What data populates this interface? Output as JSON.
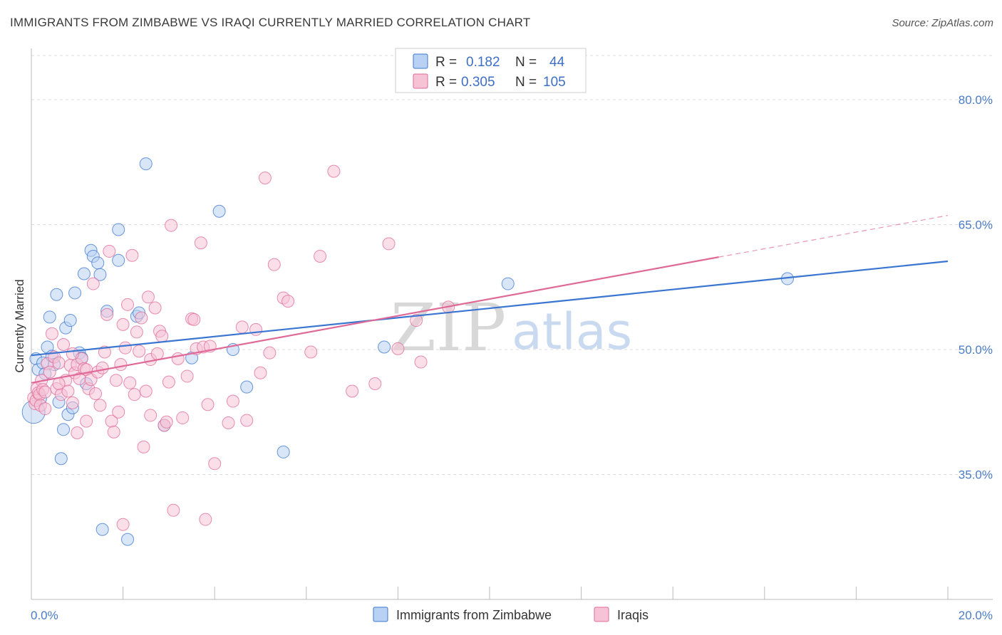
{
  "title": "IMMIGRANTS FROM ZIMBABWE VS IRAQI CURRENTLY MARRIED CORRELATION CHART",
  "source": "Source: ZipAtlas.com",
  "watermark": {
    "zip": "ZIP",
    "atlas": "atlas"
  },
  "colors": {
    "blue": "#3a76d1",
    "blue_fill": "#b9d1f3",
    "pink": "#e06a97",
    "pink_fill": "#f6c3d5",
    "grid": "#dddddd",
    "tick_label": "#4a7cc7"
  },
  "legend": {
    "rows": [
      {
        "r_label": "R =",
        "r_value": "0.182",
        "n_label": "N =",
        "n_value": "44"
      },
      {
        "r_label": "R =",
        "r_value": "0.305",
        "n_label": "N =",
        "n_value": "105"
      }
    ]
  },
  "chart_data": {
    "type": "scatter",
    "title": "IMMIGRANTS FROM ZIMBABWE VS IRAQI CURRENTLY MARRIED CORRELATION CHART",
    "xlabel": "",
    "ylabel": "Currently Married",
    "xlim": [
      0,
      20
    ],
    "ylim": [
      20,
      82
    ],
    "x_tick_labels": [
      "0.0%",
      "20.0%"
    ],
    "y_ticks": [
      35,
      50,
      65,
      80
    ],
    "y_tick_labels": [
      "35.0%",
      "50.0%",
      "65.0%",
      "80.0%"
    ],
    "grid": true,
    "legend_position": "top-center",
    "series": [
      {
        "name": "Immigrants from Zimbabwe",
        "color": "#3a76d1",
        "r": 0.182,
        "n": 44,
        "trend": {
          "x": [
            0,
            20
          ],
          "y": [
            49.3,
            60.6
          ]
        },
        "points": [
          [
            0.05,
            42.5
          ],
          [
            0.1,
            48.9
          ],
          [
            0.15,
            47.6
          ],
          [
            0.2,
            44.1
          ],
          [
            0.25,
            48.4
          ],
          [
            0.3,
            47.1
          ],
          [
            0.35,
            50.3
          ],
          [
            0.4,
            53.9
          ],
          [
            0.45,
            49.2
          ],
          [
            0.5,
            48.2
          ],
          [
            0.55,
            56.6
          ],
          [
            0.6,
            43.7
          ],
          [
            0.65,
            36.9
          ],
          [
            0.7,
            40.4
          ],
          [
            0.75,
            52.6
          ],
          [
            0.8,
            42.2
          ],
          [
            0.85,
            53.5
          ],
          [
            0.9,
            43.0
          ],
          [
            0.95,
            56.8
          ],
          [
            1.05,
            49.6
          ],
          [
            1.1,
            49.0
          ],
          [
            1.15,
            59.1
          ],
          [
            1.2,
            45.9
          ],
          [
            1.3,
            61.9
          ],
          [
            1.35,
            61.2
          ],
          [
            1.45,
            60.4
          ],
          [
            1.5,
            59.0
          ],
          [
            1.55,
            28.4
          ],
          [
            1.65,
            54.6
          ],
          [
            1.9,
            64.4
          ],
          [
            1.9,
            60.7
          ],
          [
            2.1,
            27.2
          ],
          [
            2.3,
            54.0
          ],
          [
            2.35,
            54.4
          ],
          [
            2.5,
            72.3
          ],
          [
            2.9,
            40.9
          ],
          [
            3.5,
            49.0
          ],
          [
            4.1,
            66.6
          ],
          [
            4.4,
            50.0
          ],
          [
            4.7,
            45.5
          ],
          [
            5.5,
            37.7
          ],
          [
            7.7,
            50.3
          ],
          [
            10.4,
            57.9
          ],
          [
            16.5,
            58.5
          ]
        ]
      },
      {
        "name": "Iraqis",
        "color": "#e06a97",
        "r": 0.305,
        "n": 105,
        "trend": {
          "x": [
            0,
            15
          ],
          "y": [
            46.0,
            61.1
          ]
        },
        "trend_dashed": {
          "x": [
            15,
            20
          ],
          "y": [
            61.1,
            66.1
          ]
        },
        "points": [
          [
            0.05,
            44.2
          ],
          [
            0.08,
            43.5
          ],
          [
            0.1,
            43.9
          ],
          [
            0.12,
            45.3
          ],
          [
            0.15,
            44.8
          ],
          [
            0.18,
            44.6
          ],
          [
            0.2,
            43.3
          ],
          [
            0.22,
            46.3
          ],
          [
            0.25,
            45.2
          ],
          [
            0.3,
            44.9
          ],
          [
            0.35,
            48.3
          ],
          [
            0.4,
            47.3
          ],
          [
            0.45,
            51.9
          ],
          [
            0.5,
            49.1
          ],
          [
            0.55,
            45.3
          ],
          [
            0.6,
            48.4
          ],
          [
            0.65,
            44.6
          ],
          [
            0.7,
            50.6
          ],
          [
            0.75,
            46.3
          ],
          [
            0.8,
            45.0
          ],
          [
            0.85,
            48.1
          ],
          [
            0.9,
            43.6
          ],
          [
            0.95,
            47.2
          ],
          [
            1.0,
            48.2
          ],
          [
            1.05,
            46.5
          ],
          [
            1.1,
            48.9
          ],
          [
            1.15,
            47.7
          ],
          [
            1.2,
            47.6
          ],
          [
            1.25,
            45.3
          ],
          [
            1.3,
            46.4
          ],
          [
            1.35,
            57.9
          ],
          [
            1.4,
            44.7
          ],
          [
            1.45,
            47.3
          ],
          [
            1.5,
            43.3
          ],
          [
            1.55,
            47.8
          ],
          [
            1.6,
            49.7
          ],
          [
            1.65,
            54.2
          ],
          [
            1.7,
            61.8
          ],
          [
            1.75,
            41.4
          ],
          [
            1.8,
            40.1
          ],
          [
            1.85,
            46.3
          ],
          [
            1.9,
            42.5
          ],
          [
            1.95,
            48.2
          ],
          [
            2.0,
            53.0
          ],
          [
            2.05,
            50.2
          ],
          [
            2.1,
            55.4
          ],
          [
            2.15,
            46.0
          ],
          [
            2.2,
            61.3
          ],
          [
            2.25,
            44.6
          ],
          [
            2.3,
            52.1
          ],
          [
            2.35,
            49.8
          ],
          [
            2.4,
            53.8
          ],
          [
            2.45,
            38.3
          ],
          [
            2.5,
            45.0
          ],
          [
            2.55,
            56.3
          ],
          [
            2.6,
            48.8
          ],
          [
            2.7,
            55.0
          ],
          [
            2.75,
            49.5
          ],
          [
            2.8,
            52.2
          ],
          [
            2.85,
            51.6
          ],
          [
            2.9,
            40.9
          ],
          [
            2.95,
            41.3
          ],
          [
            3.0,
            46.1
          ],
          [
            3.05,
            64.9
          ],
          [
            3.1,
            30.7
          ],
          [
            3.3,
            41.8
          ],
          [
            3.4,
            46.8
          ],
          [
            3.5,
            53.7
          ],
          [
            3.55,
            53.6
          ],
          [
            3.6,
            50.1
          ],
          [
            3.7,
            62.8
          ],
          [
            3.75,
            50.3
          ],
          [
            3.8,
            29.6
          ],
          [
            3.85,
            43.4
          ],
          [
            3.9,
            50.4
          ],
          [
            4.0,
            36.3
          ],
          [
            4.3,
            41.2
          ],
          [
            4.4,
            43.8
          ],
          [
            4.6,
            52.7
          ],
          [
            4.7,
            41.5
          ],
          [
            4.9,
            52.4
          ],
          [
            5.0,
            47.2
          ],
          [
            5.1,
            70.6
          ],
          [
            5.2,
            49.6
          ],
          [
            5.3,
            60.2
          ],
          [
            5.5,
            56.2
          ],
          [
            5.6,
            55.8
          ],
          [
            6.1,
            49.7
          ],
          [
            6.3,
            61.2
          ],
          [
            6.6,
            71.4
          ],
          [
            7.0,
            45.0
          ],
          [
            7.5,
            45.9
          ],
          [
            7.8,
            62.7
          ],
          [
            8.0,
            50.1
          ],
          [
            8.4,
            53.5
          ],
          [
            8.5,
            48.5
          ],
          [
            9.1,
            55.1
          ],
          [
            1.0,
            40.0
          ],
          [
            2.0,
            29.0
          ],
          [
            0.6,
            45.9
          ],
          [
            0.3,
            42.9
          ],
          [
            1.2,
            41.4
          ],
          [
            2.6,
            42.1
          ],
          [
            3.2,
            48.9
          ],
          [
            0.9,
            49.5
          ]
        ]
      }
    ]
  }
}
